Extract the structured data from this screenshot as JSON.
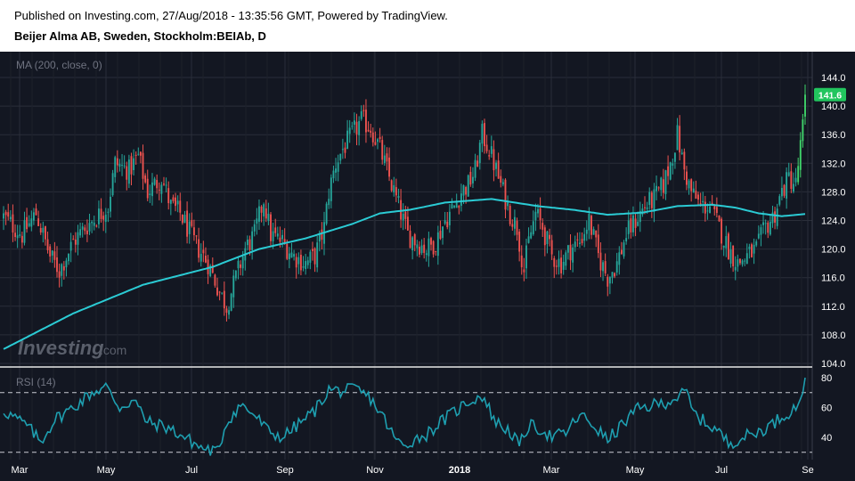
{
  "header": {
    "published": "Published on Investing.com, 27/Aug/2018 - 13:35:56 GMT, Powered by TradingView.",
    "instrument": "Beijer Alma AB, Sweden, Stockholm:BEIAb, D"
  },
  "watermark": {
    "text": "Investing",
    "suffix": ".com"
  },
  "colors": {
    "background": "#131722",
    "up": "#26a69a",
    "up_bright": "#3fd46a",
    "down": "#ef5350",
    "ma": "#2bcbd4",
    "rsi": "#1e9fb0",
    "grid": "#2a2e39",
    "price_tag": "#22c55e"
  },
  "chart_data": [
    {
      "type": "candlestick",
      "indicator_label": "MA (200, close, 0)",
      "last_price": "141.6",
      "y_ticks": [
        "144.0",
        "140.0",
        "136.0",
        "132.0",
        "128.0",
        "124.0",
        "120.0",
        "116.0",
        "112.0",
        "108.0",
        "104.0"
      ],
      "ylim": [
        104,
        144
      ],
      "x_ticks": [
        "Mar",
        "May",
        "Jul",
        "Sep",
        "Nov",
        "2018",
        "Mar",
        "May",
        "Jul",
        "Se"
      ],
      "price_anchors": [
        [
          0,
          124.5
        ],
        [
          8,
          122
        ],
        [
          14,
          125
        ],
        [
          20,
          119
        ],
        [
          24,
          117
        ],
        [
          30,
          121
        ],
        [
          35,
          123
        ],
        [
          40,
          124.5
        ],
        [
          45,
          126
        ],
        [
          48,
          132
        ],
        [
          54,
          131
        ],
        [
          58,
          133
        ],
        [
          62,
          128
        ],
        [
          68,
          130
        ],
        [
          72,
          126
        ],
        [
          76,
          125
        ],
        [
          82,
          121
        ],
        [
          88,
          118
        ],
        [
          93,
          114
        ],
        [
          96,
          112
        ],
        [
          100,
          116
        ],
        [
          104,
          120
        ],
        [
          108,
          122
        ],
        [
          112,
          127
        ],
        [
          115,
          122
        ],
        [
          120,
          121
        ],
        [
          125,
          119
        ],
        [
          130,
          118
        ],
        [
          134,
          119
        ],
        [
          138,
          123
        ],
        [
          140,
          128
        ],
        [
          143,
          132
        ],
        [
          146,
          134
        ],
        [
          150,
          136
        ],
        [
          154,
          138
        ],
        [
          158,
          137
        ],
        [
          162,
          134
        ],
        [
          166,
          130
        ],
        [
          170,
          126
        ],
        [
          174,
          122
        ],
        [
          178,
          121
        ],
        [
          182,
          120
        ],
        [
          186,
          121
        ],
        [
          190,
          124
        ],
        [
          194,
          126
        ],
        [
          197,
          128
        ],
        [
          200,
          129
        ],
        [
          203,
          131
        ],
        [
          206,
          136
        ],
        [
          209,
          134
        ],
        [
          212,
          131
        ],
        [
          215,
          128
        ],
        [
          218,
          125
        ],
        [
          221,
          123
        ],
        [
          224,
          117
        ],
        [
          226,
          121
        ],
        [
          229,
          125
        ],
        [
          232,
          123
        ],
        [
          236,
          119
        ],
        [
          240,
          118
        ],
        [
          244,
          120
        ],
        [
          248,
          121
        ],
        [
          252,
          124
        ],
        [
          256,
          119
        ],
        [
          260,
          116
        ],
        [
          264,
          118
        ],
        [
          268,
          122
        ],
        [
          272,
          124
        ],
        [
          276,
          126
        ],
        [
          280,
          127
        ],
        [
          284,
          129
        ],
        [
          287,
          132
        ],
        [
          290,
          136
        ],
        [
          293,
          131
        ],
        [
          296,
          128
        ],
        [
          300,
          126
        ],
        [
          304,
          126
        ],
        [
          308,
          123
        ],
        [
          312,
          120
        ],
        [
          316,
          118
        ],
        [
          320,
          119
        ],
        [
          324,
          120
        ],
        [
          328,
          123
        ],
        [
          332,
          125
        ],
        [
          335,
          128
        ],
        [
          338,
          130
        ],
        [
          341,
          129
        ],
        [
          344,
          137
        ],
        [
          345,
          141.6
        ]
      ],
      "ma_values": [
        [
          0,
          106
        ],
        [
          30,
          111
        ],
        [
          60,
          115
        ],
        [
          90,
          117.5
        ],
        [
          110,
          120
        ],
        [
          130,
          121.5
        ],
        [
          150,
          123.5
        ],
        [
          162,
          125
        ],
        [
          175,
          125.5
        ],
        [
          190,
          126.5
        ],
        [
          210,
          127
        ],
        [
          230,
          126
        ],
        [
          245,
          125.5
        ],
        [
          260,
          124.8
        ],
        [
          275,
          125.1
        ],
        [
          290,
          126
        ],
        [
          305,
          126.2
        ],
        [
          315,
          125.8
        ],
        [
          325,
          125
        ],
        [
          335,
          124.6
        ],
        [
          345,
          124.9
        ]
      ]
    },
    {
      "type": "line",
      "indicator_label": "RSI (14)",
      "y_ticks": [
        "80",
        "60",
        "40"
      ],
      "ylim": [
        26,
        84
      ],
      "reference_lines": [
        70,
        30
      ],
      "rsi_anchors": [
        [
          0,
          58
        ],
        [
          10,
          48
        ],
        [
          16,
          37
        ],
        [
          22,
          52
        ],
        [
          30,
          60
        ],
        [
          38,
          70
        ],
        [
          44,
          74
        ],
        [
          50,
          60
        ],
        [
          56,
          65
        ],
        [
          62,
          50
        ],
        [
          70,
          47
        ],
        [
          78,
          40
        ],
        [
          85,
          33
        ],
        [
          92,
          30
        ],
        [
          96,
          50
        ],
        [
          102,
          62
        ],
        [
          108,
          55
        ],
        [
          114,
          44
        ],
        [
          120,
          40
        ],
        [
          128,
          50
        ],
        [
          134,
          58
        ],
        [
          140,
          72
        ],
        [
          146,
          71
        ],
        [
          152,
          72
        ],
        [
          158,
          66
        ],
        [
          164,
          52
        ],
        [
          168,
          40
        ],
        [
          172,
          34
        ],
        [
          176,
          38
        ],
        [
          182,
          42
        ],
        [
          188,
          50
        ],
        [
          194,
          57
        ],
        [
          200,
          64
        ],
        [
          206,
          68
        ],
        [
          212,
          50
        ],
        [
          218,
          44
        ],
        [
          222,
          34
        ],
        [
          226,
          48
        ],
        [
          232,
          45
        ],
        [
          236,
          40
        ],
        [
          242,
          43
        ],
        [
          248,
          55
        ],
        [
          254,
          48
        ],
        [
          260,
          38
        ],
        [
          266,
          48
        ],
        [
          272,
          58
        ],
        [
          278,
          61
        ],
        [
          284,
          63
        ],
        [
          290,
          67
        ],
        [
          294,
          70
        ],
        [
          297,
          56
        ],
        [
          302,
          50
        ],
        [
          307,
          45
        ],
        [
          312,
          36
        ],
        [
          318,
          40
        ],
        [
          324,
          43
        ],
        [
          330,
          48
        ],
        [
          336,
          55
        ],
        [
          341,
          60
        ],
        [
          344,
          72
        ],
        [
          345,
          80
        ]
      ]
    }
  ]
}
